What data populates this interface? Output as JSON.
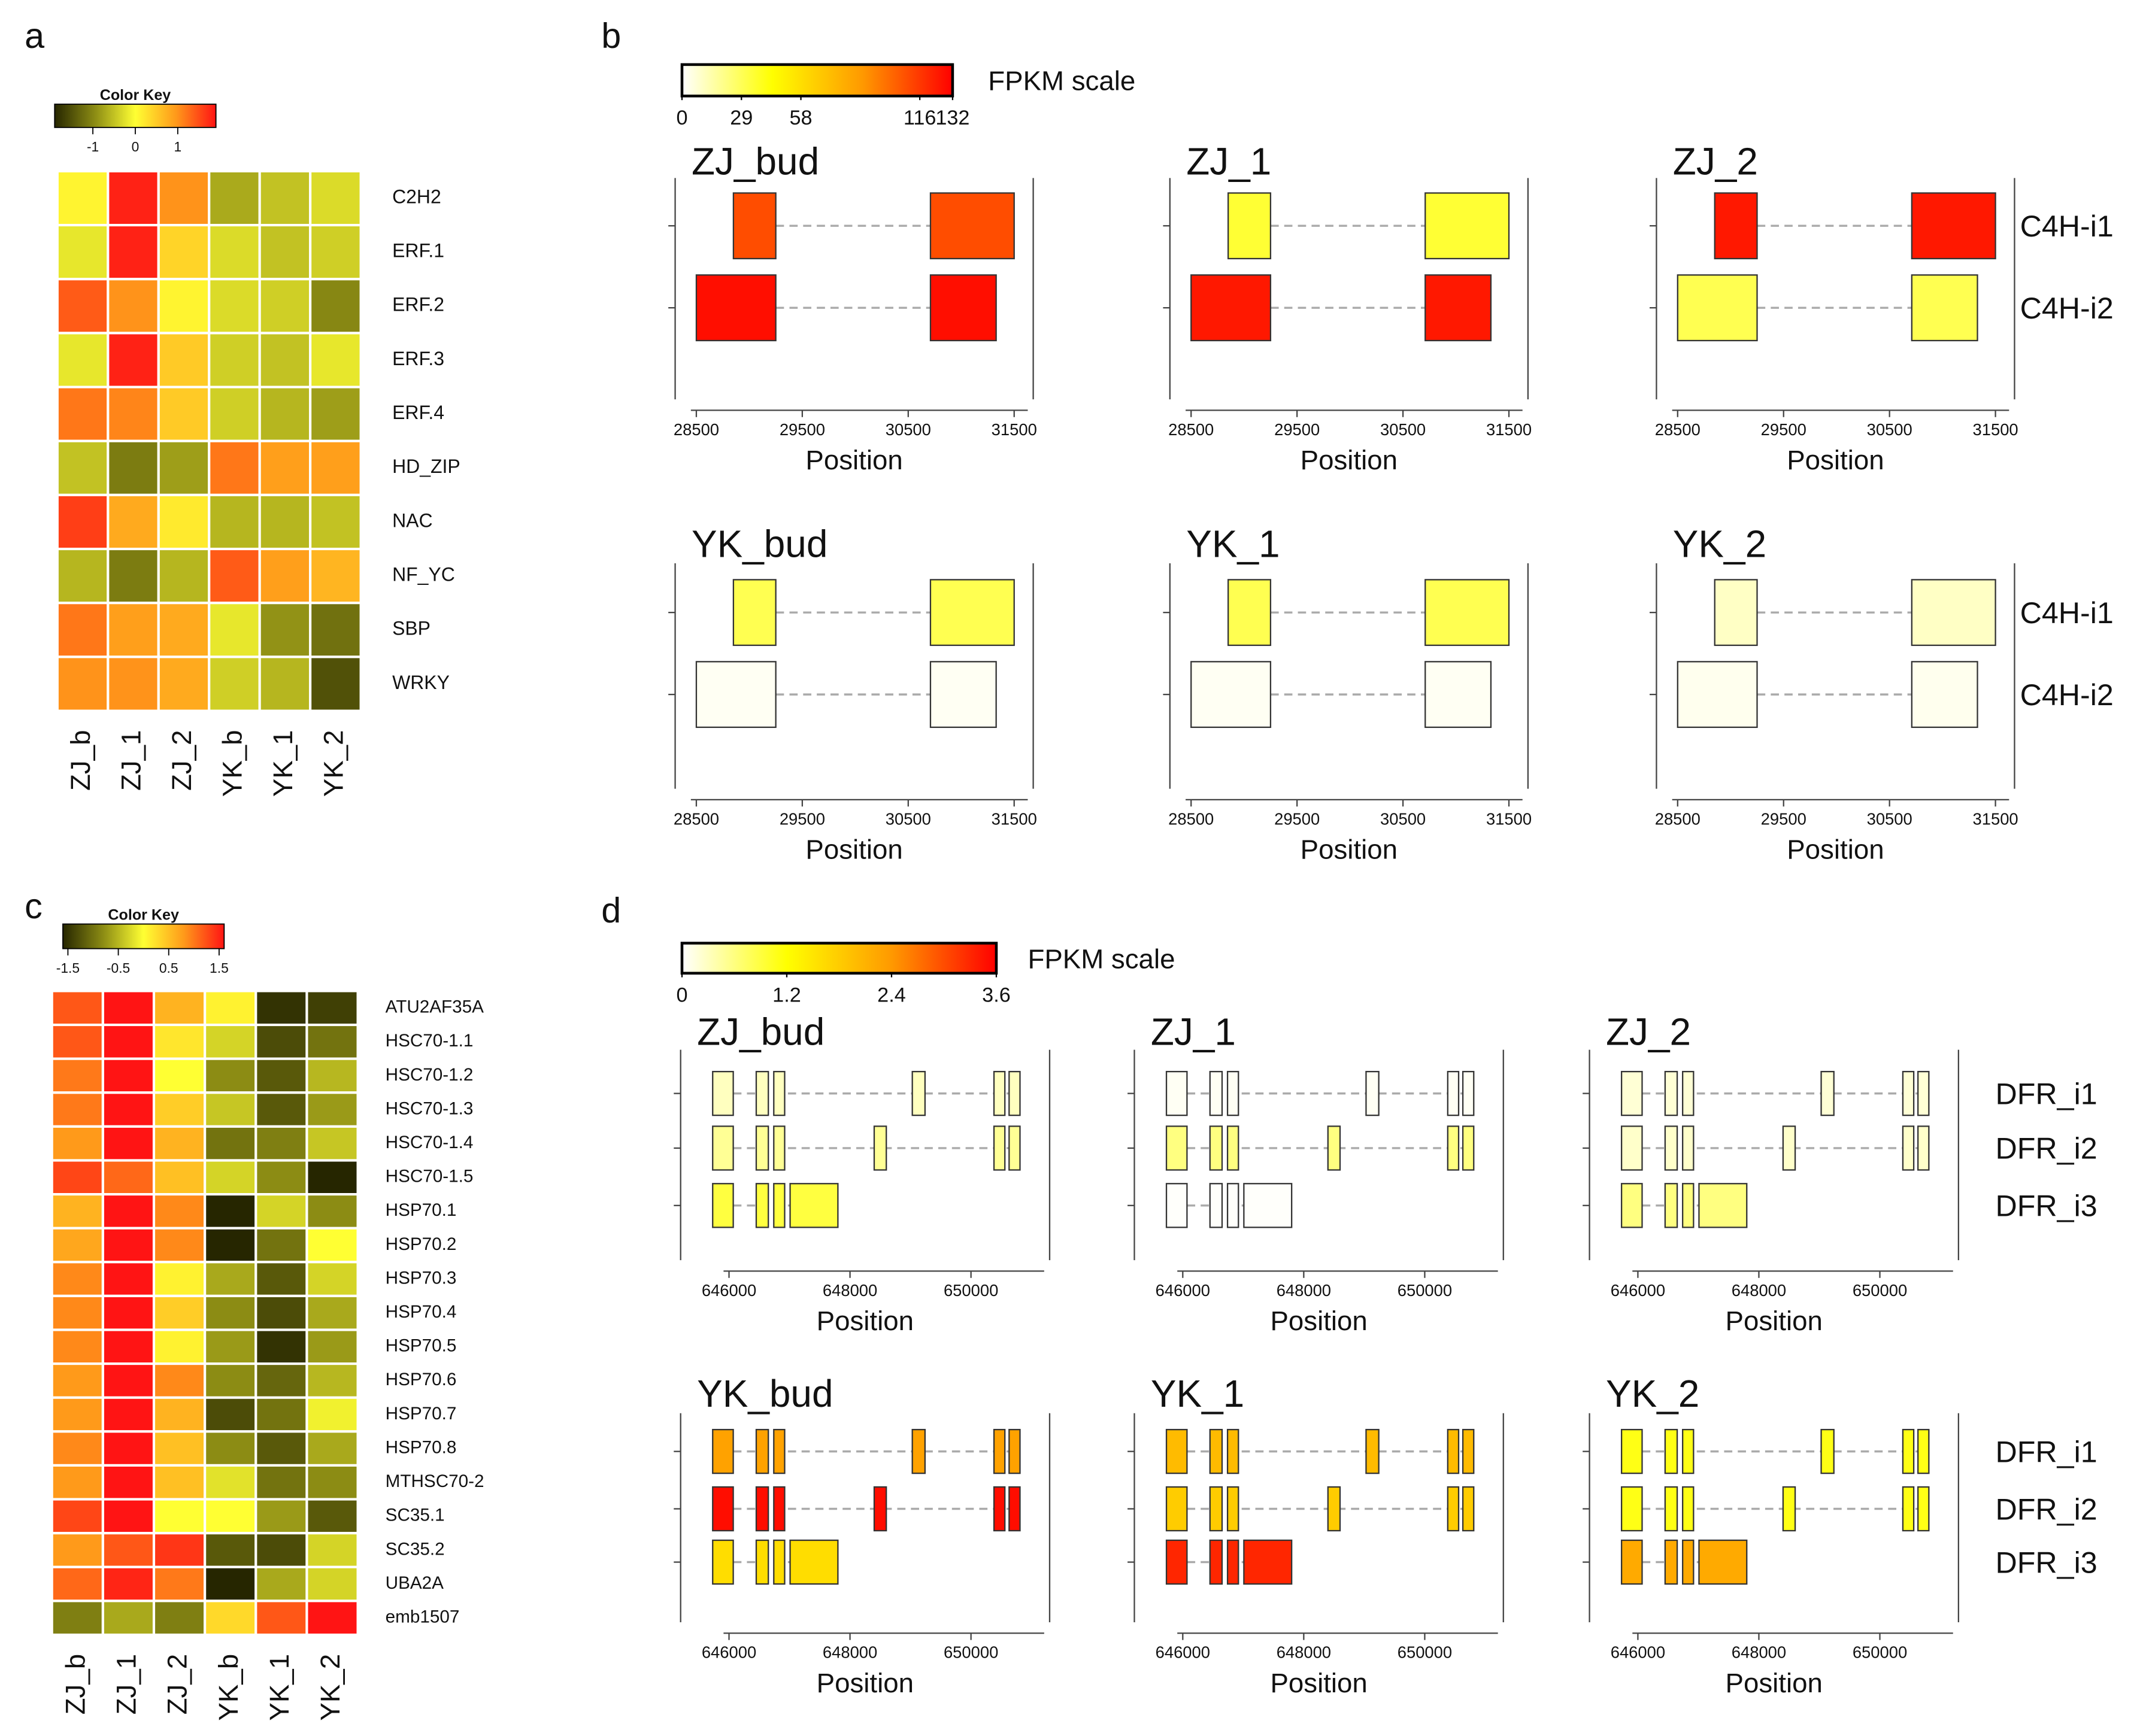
{
  "chart_data": [
    {
      "type": "heatmap",
      "panel": "a",
      "key_title": "Color Key",
      "zlim": [
        -1.9,
        1.9
      ],
      "zticks": [
        -1,
        0,
        1
      ],
      "colors": [
        "#262600",
        "#8c8c14",
        "#ffff33",
        "#ff9a1a",
        "#ff1414"
      ],
      "columns": [
        "ZJ_b",
        "ZJ_1",
        "ZJ_2",
        "YK_b",
        "YK_1",
        "YK_2"
      ],
      "rows": [
        "C2H2",
        "ERF.1",
        "ERF.2",
        "ERF.3",
        "ERF.4",
        "HD_ZIP",
        "NAC",
        "NF_YC",
        "SBP",
        "WRKY"
      ],
      "values": [
        [
          0.1,
          1.8,
          1.0,
          -0.7,
          -0.5,
          -0.3
        ],
        [
          -0.2,
          1.8,
          0.4,
          -0.3,
          -0.5,
          -0.4
        ],
        [
          1.4,
          1.0,
          0.1,
          -0.3,
          -0.4,
          -1.0
        ],
        [
          -0.2,
          1.8,
          0.5,
          -0.4,
          -0.5,
          -0.2
        ],
        [
          1.2,
          1.1,
          0.5,
          -0.4,
          -0.6,
          -0.8
        ],
        [
          -0.5,
          -1.1,
          -0.8,
          1.2,
          0.9,
          0.9
        ],
        [
          1.6,
          0.8,
          0.2,
          -0.6,
          -0.6,
          -0.5
        ],
        [
          -0.6,
          -1.1,
          -0.6,
          1.4,
          0.9,
          0.7
        ],
        [
          1.2,
          0.9,
          0.8,
          -0.2,
          -0.9,
          -1.2
        ],
        [
          1.0,
          1.0,
          0.8,
          -0.4,
          -0.6,
          -1.5
        ]
      ]
    },
    {
      "type": "gene_structure",
      "panel": "b",
      "scale_title": "FPKM scale",
      "scale_lim": [
        0,
        132
      ],
      "scale_ticks": [
        0,
        29,
        58,
        116,
        132
      ],
      "colors": [
        "#ffffff",
        "#ffff00",
        "#ff9900",
        "#ff0000"
      ],
      "xlabel": "Position",
      "xlim": [
        28300,
        31680
      ],
      "xticks": [
        28500,
        29500,
        30500,
        31500
      ],
      "isoforms": [
        {
          "name": "C4H-i1",
          "exons": [
            [
              28850,
              29250
            ],
            [
              30710,
              31500
            ]
          ]
        },
        {
          "name": "C4H-i2",
          "exons": [
            [
              28500,
              29250
            ],
            [
              30710,
              31330
            ]
          ]
        }
      ],
      "samples": [
        {
          "name": "ZJ_bud",
          "fpkm": [
            110,
            128
          ]
        },
        {
          "name": "ZJ_1",
          "fpkm": [
            35,
            125
          ]
        },
        {
          "name": "ZJ_2",
          "fpkm": [
            125,
            30
          ]
        },
        {
          "name": "YK_bud",
          "fpkm": [
            30,
            2
          ]
        },
        {
          "name": "YK_1",
          "fpkm": [
            30,
            2
          ]
        },
        {
          "name": "YK_2",
          "fpkm": [
            10,
            3
          ]
        }
      ]
    },
    {
      "type": "heatmap",
      "panel": "c",
      "key_title": "Color Key",
      "zlim": [
        -1.6,
        1.6
      ],
      "zticks": [
        -1.5,
        -0.5,
        0.5,
        1.5
      ],
      "colors": [
        "#262600",
        "#8c8c14",
        "#ffff33",
        "#ff9a1a",
        "#ff1414"
      ],
      "columns": [
        "ZJ_b",
        "ZJ_1",
        "ZJ_2",
        "YK_b",
        "YK_1",
        "YK_2"
      ],
      "rows": [
        "ATU2AF35A",
        "HSC70-1.1",
        "HSC70-1.2",
        "HSC70-1.3",
        "HSC70-1.4",
        "HSC70-1.5",
        "HSP70.1",
        "HSP70.2",
        "HSP70.3",
        "HSP70.4",
        "HSP70.5",
        "HSP70.6",
        "HSP70.7",
        "HSP70.8",
        "MTHSC70-2",
        "SC35.1",
        "SC35.2",
        "UBA2A",
        "emb1507"
      ],
      "values": [
        [
          1.2,
          1.6,
          0.6,
          0.1,
          -1.5,
          -1.4
        ],
        [
          1.2,
          1.7,
          0.2,
          -0.3,
          -1.3,
          -1.0
        ],
        [
          1.0,
          1.7,
          0.0,
          -0.8,
          -1.2,
          -0.5
        ],
        [
          1.0,
          1.7,
          0.4,
          -0.4,
          -1.2,
          -0.7
        ],
        [
          0.8,
          1.7,
          0.6,
          -1.0,
          -0.9,
          -0.4
        ],
        [
          1.3,
          1.1,
          0.5,
          -0.3,
          -0.8,
          -1.8
        ],
        [
          0.6,
          1.7,
          0.9,
          -1.7,
          -0.3,
          -0.8
        ],
        [
          0.7,
          1.7,
          0.9,
          -1.8,
          -1.0,
          0.0
        ],
        [
          0.9,
          1.7,
          0.1,
          -0.6,
          -1.2,
          -0.3
        ],
        [
          0.9,
          1.7,
          0.4,
          -0.8,
          -1.3,
          -0.6
        ],
        [
          0.9,
          1.7,
          0.1,
          -0.7,
          -1.5,
          -0.7
        ],
        [
          0.8,
          1.7,
          0.9,
          -0.8,
          -1.1,
          -0.5
        ],
        [
          0.8,
          1.7,
          0.6,
          -1.3,
          -1.0,
          -0.1
        ],
        [
          0.9,
          1.7,
          0.5,
          -0.8,
          -1.2,
          -0.6
        ],
        [
          0.8,
          1.7,
          0.5,
          -0.2,
          -1.0,
          -0.8
        ],
        [
          1.3,
          1.7,
          0.0,
          0.0,
          -0.7,
          -1.2
        ],
        [
          0.8,
          1.2,
          1.4,
          -1.2,
          -1.3,
          -0.3
        ],
        [
          1.1,
          1.5,
          1.0,
          -2.0,
          -0.6,
          -0.3
        ],
        [
          -0.9,
          -0.6,
          -0.9,
          0.3,
          1.2,
          1.6
        ]
      ]
    },
    {
      "type": "gene_structure",
      "panel": "d",
      "scale_title": "FPKM scale",
      "scale_lim": [
        0,
        3.6
      ],
      "scale_ticks": [
        0,
        1.2,
        2.4,
        3.6
      ],
      "colors": [
        "#ffffff",
        "#ffff00",
        "#ff9900",
        "#ff0000"
      ],
      "xlabel": "Position",
      "xlim": [
        645200,
        651300
      ],
      "xticks": [
        646000,
        648000,
        650000
      ],
      "isoforms": [
        {
          "name": "DFR_i1",
          "exons": [
            [
              645730,
              646070
            ],
            [
              646450,
              646650
            ],
            [
              646740,
              646920
            ],
            [
              649030,
              649240
            ],
            [
              650380,
              650560
            ],
            [
              650630,
              650810
            ]
          ]
        },
        {
          "name": "DFR_i2",
          "exons": [
            [
              645730,
              646070
            ],
            [
              646450,
              646650
            ],
            [
              646740,
              646920
            ],
            [
              648400,
              648600
            ],
            [
              650380,
              650560
            ],
            [
              650630,
              650810
            ]
          ]
        },
        {
          "name": "DFR_i3",
          "exons": [
            [
              645730,
              646070
            ],
            [
              646450,
              646650
            ],
            [
              646740,
              646920
            ],
            [
              647010,
              647800
            ]
          ]
        }
      ],
      "samples": [
        {
          "name": "ZJ_bud",
          "fpkm": [
            0.3,
            0.5,
            0.9
          ]
        },
        {
          "name": "ZJ_1",
          "fpkm": [
            0.05,
            0.6,
            0.02
          ]
        },
        {
          "name": "ZJ_2",
          "fpkm": [
            0.2,
            0.25,
            0.6
          ]
        },
        {
          "name": "YK_bud",
          "fpkm": [
            2.3,
            3.5,
            1.6
          ]
        },
        {
          "name": "YK_1",
          "fpkm": [
            2.0,
            1.8,
            3.3
          ]
        },
        {
          "name": "YK_2",
          "fpkm": [
            1.1,
            1.1,
            2.2
          ]
        }
      ]
    }
  ]
}
